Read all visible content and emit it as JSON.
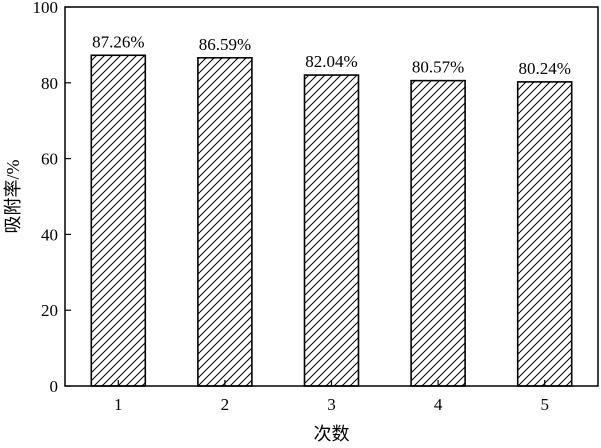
{
  "chart_data": {
    "type": "bar",
    "title": "",
    "xlabel": "次数",
    "ylabel": "吸附率/%",
    "categories": [
      "1",
      "2",
      "3",
      "4",
      "5"
    ],
    "values": [
      87.26,
      86.59,
      82.04,
      80.57,
      80.24
    ],
    "data_labels": [
      "87.26%",
      "86.59%",
      "82.04%",
      "80.57%",
      "80.24%"
    ],
    "ylim": [
      0,
      100
    ],
    "yticks": [
      0,
      20,
      40,
      60,
      80,
      100
    ],
    "ytick_labels": [
      "0",
      "20",
      "40",
      "60",
      "80",
      "100"
    ],
    "grid": false,
    "legend": "none",
    "bar_fill": "hatched diagonal",
    "colors": {
      "bar_stroke": "#000000",
      "hatch": "#000000",
      "background": "#ffffff"
    }
  }
}
